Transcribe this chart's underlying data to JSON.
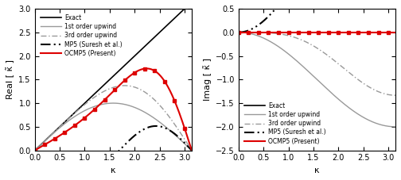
{
  "ylabel_left": "Real [ κ̃ ]",
  "ylabel_right": "Imag [ κ̃ ]",
  "xlabel": "κ",
  "xlim": [
    0,
    3.14159
  ],
  "ylim_left": [
    0,
    3.0
  ],
  "ylim_right": [
    -2.5,
    0.5
  ],
  "yticks_left": [
    0,
    0.5,
    1.0,
    1.5,
    2.0,
    2.5,
    3.0
  ],
  "yticks_right": [
    -2.5,
    -2.0,
    -1.5,
    -1.0,
    -0.5,
    0.0,
    0.5
  ],
  "xticks": [
    0,
    0.5,
    1.0,
    1.5,
    2.0,
    2.5,
    3.0
  ],
  "legend_entries": [
    "Exact",
    "1st order upwind",
    "3rd order upwind",
    "MP5 (Suresh et al.)",
    "OCMP5 (Present)"
  ],
  "color_exact": "#000000",
  "color_1st": "#999999",
  "color_3rd": "#999999",
  "color_mp5": "#000000",
  "color_ocmp5": "#dd0000",
  "figsize": [
    5.04,
    2.27
  ],
  "dpi": 100
}
